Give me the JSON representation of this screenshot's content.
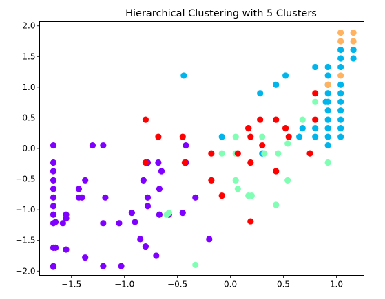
{
  "chart_data": {
    "type": "scatter",
    "title": "Hierarchical Clustering with 5 Clusters",
    "xlabel": "",
    "ylabel": "",
    "xlim": [
      -1.8,
      1.26
    ],
    "ylim": [
      -2.07,
      2.07
    ],
    "xticks": [
      -1.5,
      -1.0,
      -0.5,
      0.0,
      0.5,
      1.0
    ],
    "xtick_labels": [
      "−1.5",
      "−1.0",
      "−0.5",
      "0.0",
      "0.5",
      "1.0"
    ],
    "yticks": [
      -2.0,
      -1.5,
      -1.0,
      -0.5,
      0.0,
      0.5,
      1.0,
      1.5,
      2.0
    ],
    "ytick_labels": [
      "−2.0",
      "−1.5",
      "−1.0",
      "−0.5",
      "0.0",
      "0.5",
      "1.0",
      "1.5",
      "2.0"
    ],
    "grid": false,
    "legend": "none",
    "series": [
      {
        "color": "#8000ff",
        "points": [
          [
            -1.67,
            0.05
          ],
          [
            -1.67,
            -0.23
          ],
          [
            -1.67,
            -0.37
          ],
          [
            -1.67,
            -0.52
          ],
          [
            -1.67,
            -0.66
          ],
          [
            -1.67,
            -0.8
          ],
          [
            -1.67,
            -0.94
          ],
          [
            -1.67,
            -1.08
          ],
          [
            -1.67,
            -1.22
          ],
          [
            -1.67,
            -1.62
          ],
          [
            -1.67,
            -1.92
          ],
          [
            -1.67,
            -1.93
          ],
          [
            -1.65,
            -1.62
          ],
          [
            -1.65,
            -1.2
          ],
          [
            -1.58,
            -1.22
          ],
          [
            -1.55,
            -1.08
          ],
          [
            -1.55,
            -1.14
          ],
          [
            -1.55,
            -1.65
          ],
          [
            -1.43,
            -0.66
          ],
          [
            -1.43,
            -0.8
          ],
          [
            -1.4,
            -0.8
          ],
          [
            -1.37,
            -0.52
          ],
          [
            -1.37,
            -1.78
          ],
          [
            -1.3,
            0.05
          ],
          [
            -1.2,
            0.05
          ],
          [
            -1.2,
            -1.22
          ],
          [
            -1.2,
            -1.92
          ],
          [
            -1.18,
            -0.8
          ],
          [
            -1.05,
            -1.22
          ],
          [
            -1.03,
            -1.92
          ],
          [
            -0.93,
            -1.05
          ],
          [
            -0.9,
            -1.2
          ],
          [
            -0.85,
            -1.48
          ],
          [
            -0.82,
            -0.52
          ],
          [
            -0.8,
            -1.6
          ],
          [
            -0.78,
            -0.23
          ],
          [
            -0.78,
            -0.8
          ],
          [
            -0.78,
            -0.94
          ],
          [
            -0.7,
            -1.75
          ],
          [
            -0.68,
            -0.23
          ],
          [
            -0.67,
            -0.66
          ],
          [
            -0.67,
            -1.08
          ],
          [
            -0.65,
            -0.37
          ],
          [
            -0.58,
            -1.08
          ],
          [
            -0.45,
            -1.05
          ],
          [
            -0.42,
            0.05
          ],
          [
            -0.42,
            -0.23
          ],
          [
            -0.33,
            -0.8
          ],
          [
            -0.2,
            -1.48
          ]
        ]
      },
      {
        "color": "#00b5eb",
        "points": [
          [
            -0.44,
            1.19
          ],
          [
            -0.08,
            0.19
          ],
          [
            0.17,
            0.33
          ],
          [
            0.28,
            0.9
          ],
          [
            0.3,
            -0.08
          ],
          [
            0.43,
            1.04
          ],
          [
            0.52,
            1.19
          ],
          [
            0.65,
            0.19
          ],
          [
            0.68,
            0.33
          ],
          [
            0.8,
            0.19
          ],
          [
            0.8,
            0.33
          ],
          [
            0.8,
            1.33
          ],
          [
            0.9,
            0.76
          ],
          [
            0.92,
            0.05
          ],
          [
            0.92,
            0.19
          ],
          [
            0.92,
            0.33
          ],
          [
            0.92,
            0.47
          ],
          [
            0.92,
            0.62
          ],
          [
            0.92,
            0.76
          ],
          [
            0.92,
            0.9
          ],
          [
            0.92,
            1.04
          ],
          [
            0.92,
            1.19
          ],
          [
            0.92,
            1.33
          ],
          [
            1.04,
            0.19
          ],
          [
            1.04,
            0.33
          ],
          [
            1.04,
            0.47
          ],
          [
            1.04,
            0.62
          ],
          [
            1.04,
            0.76
          ],
          [
            1.04,
            0.9
          ],
          [
            1.04,
            1.04
          ],
          [
            1.04,
            1.33
          ],
          [
            1.04,
            1.47
          ],
          [
            1.04,
            1.61
          ],
          [
            1.16,
            1.47
          ],
          [
            1.16,
            1.61
          ]
        ]
      },
      {
        "color": "#80ffb4",
        "points": [
          [
            -0.6,
            -1.08
          ],
          [
            -0.58,
            -1.05
          ],
          [
            -0.33,
            -1.9
          ],
          [
            -0.08,
            -0.08
          ],
          [
            0.05,
            0.19
          ],
          [
            0.05,
            -0.08
          ],
          [
            0.05,
            -0.52
          ],
          [
            0.07,
            -0.66
          ],
          [
            0.17,
            -0.77
          ],
          [
            0.2,
            -0.77
          ],
          [
            0.3,
            0.19
          ],
          [
            0.32,
            -0.08
          ],
          [
            0.43,
            -0.92
          ],
          [
            0.45,
            -0.08
          ],
          [
            0.54,
            0.08
          ],
          [
            0.54,
            -0.52
          ],
          [
            0.68,
            0.47
          ],
          [
            0.8,
            0.76
          ],
          [
            0.92,
            -0.23
          ]
        ]
      },
      {
        "color": "#ffb360",
        "points": [
          [
            0.92,
            1.04
          ],
          [
            1.04,
            1.19
          ],
          [
            1.04,
            1.75
          ],
          [
            1.04,
            1.89
          ],
          [
            1.16,
            1.75
          ],
          [
            1.16,
            1.89
          ]
        ]
      },
      {
        "color": "#ff0000",
        "points": [
          [
            -0.8,
            0.47
          ],
          [
            -0.8,
            -0.23
          ],
          [
            -0.68,
            0.19
          ],
          [
            -0.45,
            0.19
          ],
          [
            -0.43,
            -0.23
          ],
          [
            -0.18,
            -0.08
          ],
          [
            -0.18,
            -0.52
          ],
          [
            -0.08,
            -0.77
          ],
          [
            0.07,
            -0.08
          ],
          [
            0.17,
            0.33
          ],
          [
            0.19,
            0.19
          ],
          [
            0.19,
            -0.23
          ],
          [
            0.19,
            -1.19
          ],
          [
            0.28,
            0.47
          ],
          [
            0.3,
            0.05
          ],
          [
            0.43,
            0.47
          ],
          [
            0.43,
            -0.37
          ],
          [
            0.52,
            0.33
          ],
          [
            0.55,
            0.19
          ],
          [
            0.75,
            -0.08
          ],
          [
            0.8,
            0.47
          ],
          [
            0.8,
            0.9
          ]
        ]
      }
    ]
  }
}
